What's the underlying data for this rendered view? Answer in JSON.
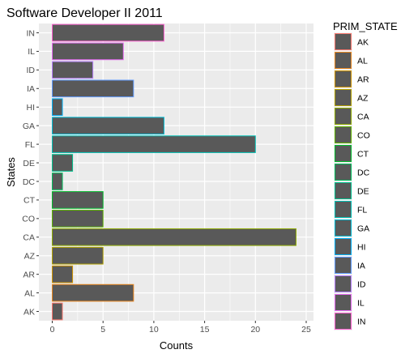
{
  "chart_data": {
    "type": "bar",
    "orientation": "horizontal",
    "title": "Software Developer II 2011",
    "xlabel": "Counts",
    "ylabel": "States",
    "xlim": [
      0,
      25
    ],
    "x_ticks": [
      0,
      5,
      10,
      15,
      20,
      25
    ],
    "grid": true,
    "categories": [
      "AK",
      "AL",
      "AR",
      "AZ",
      "CA",
      "CO",
      "CT",
      "DC",
      "DE",
      "FL",
      "GA",
      "HI",
      "IA",
      "ID",
      "IL",
      "IN"
    ],
    "values": [
      1,
      8,
      2,
      5,
      24,
      5,
      5,
      1,
      2,
      20,
      11,
      1,
      8,
      4,
      7,
      11
    ],
    "bar_fill": "#595959",
    "outline_colors": [
      "#F8766D",
      "#E7851E",
      "#D09400",
      "#B2A100",
      "#8EAB00",
      "#5EB300",
      "#00B92A",
      "#00BD5C",
      "#00C08D",
      "#00BFB4",
      "#00BBD4",
      "#00B0F6",
      "#619CFF",
      "#B983FF",
      "#E76BF3",
      "#FD61D1"
    ],
    "legend": {
      "title": "PRIM_STATE",
      "position": "right",
      "entries": [
        "AK",
        "AL",
        "AR",
        "AZ",
        "CA",
        "CO",
        "CT",
        "DC",
        "DE",
        "FL",
        "GA",
        "HI",
        "IA",
        "ID",
        "IL",
        "IN"
      ]
    }
  }
}
